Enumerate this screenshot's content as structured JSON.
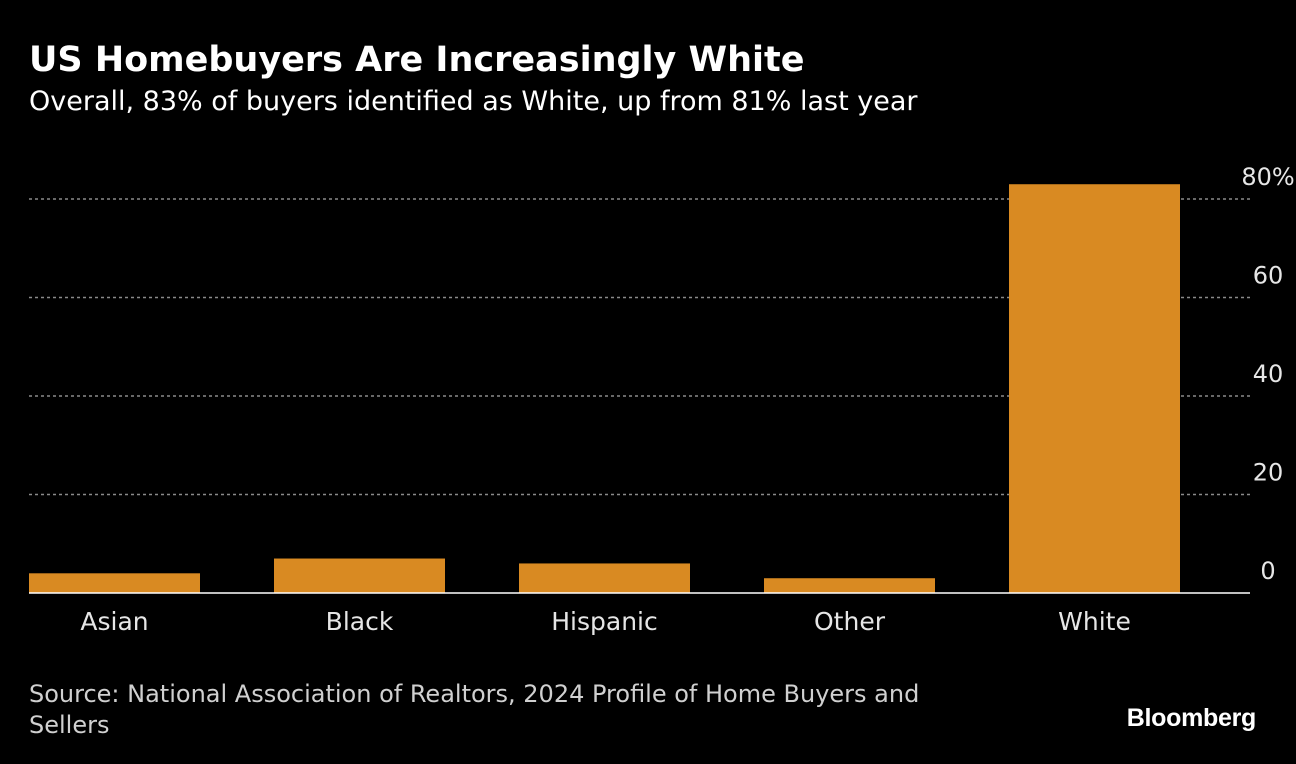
{
  "header": {
    "title": "US Homebuyers Are Increasingly White",
    "subtitle": "Overall, 83% of buyers identified as White, up from 81% last year"
  },
  "footer": {
    "source": "Source: National Association of Realtors, 2024 Profile of Home Buyers and Sellers",
    "brand": "Bloomberg"
  },
  "colors": {
    "background": "#000000",
    "bar": "#d98a22",
    "grid": "#8a8a8a",
    "axis": "#ffffff",
    "tick_text": "#e6e6e6"
  },
  "chart_data": {
    "type": "bar",
    "categories": [
      "Asian",
      "Black",
      "Hispanic",
      "Other",
      "White"
    ],
    "values": [
      4,
      7,
      6,
      3,
      83
    ],
    "ylim": [
      0,
      80
    ],
    "yticks": [
      0,
      20,
      40,
      60,
      80
    ],
    "ytick_labels": [
      "0",
      "20",
      "40",
      "60",
      "80%"
    ],
    "xlabel": "",
    "ylabel": "",
    "grid": true,
    "y_axis_position": "right",
    "legend": false
  }
}
